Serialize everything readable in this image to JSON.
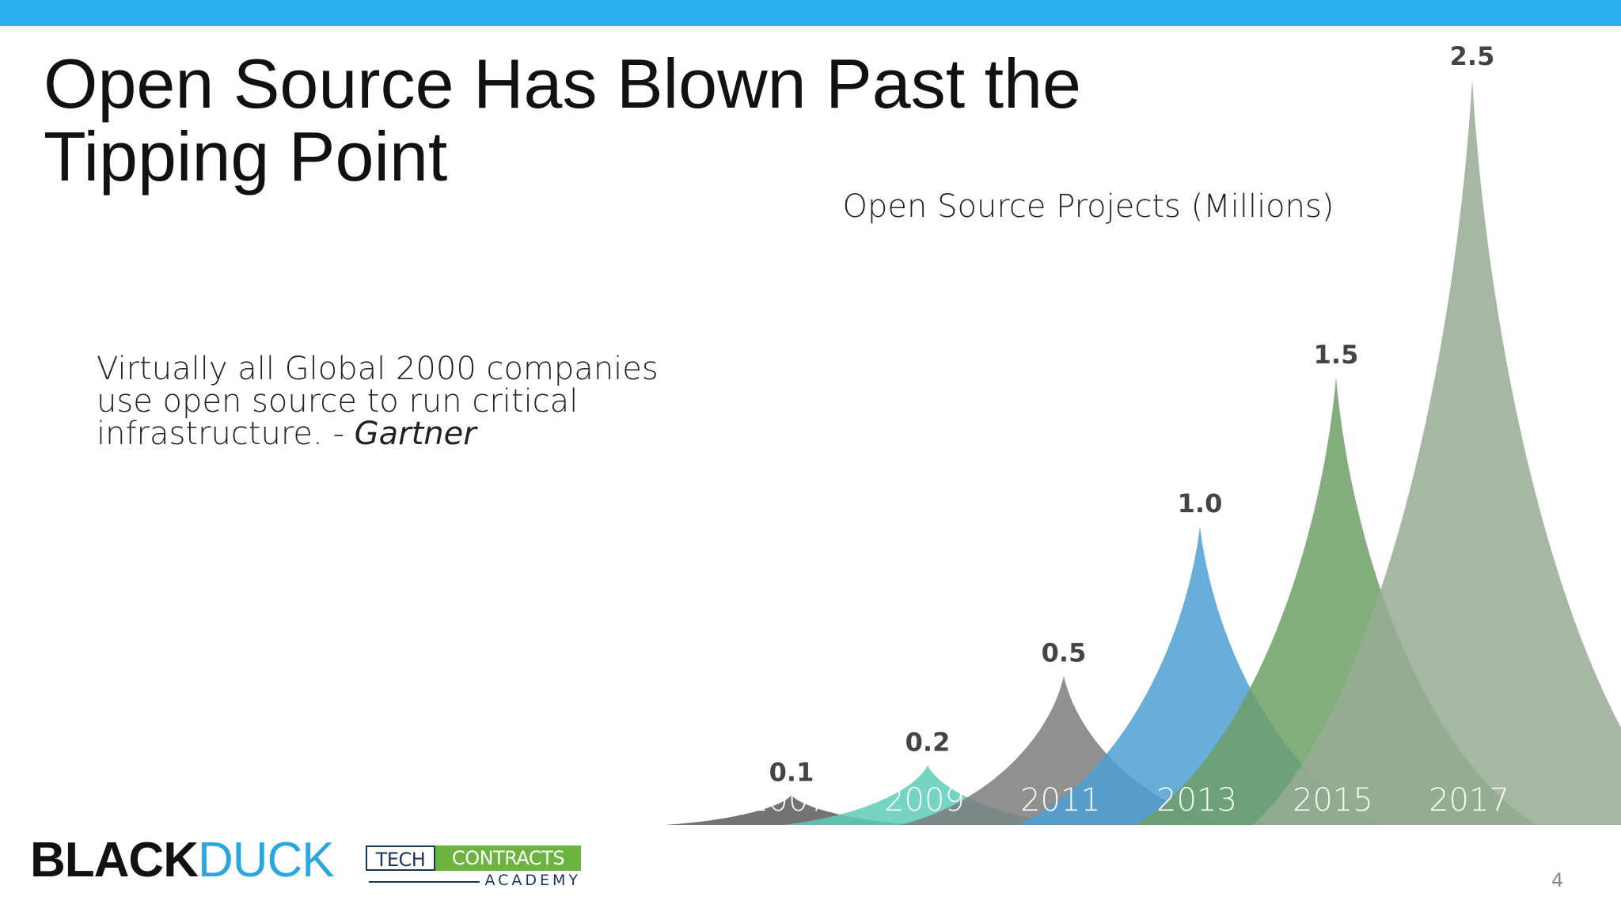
{
  "slide": {
    "title": "Open Source Has Blown Past the Tipping Point",
    "quote_text": "Virtually all Global 2000 companies use open source to run critical infrastructure. - ",
    "quote_source": "Gartner",
    "page_number": "4"
  },
  "colors": {
    "top_bar": "#2aaef0",
    "label_text": "#444444",
    "year_text": "#ffffff",
    "title_text": "#111111"
  },
  "logos": {
    "blackduck_part1": "BLACK",
    "blackduck_part2": "DUCK",
    "tca_part1": "TECH",
    "tca_part2": "CONTRACTS",
    "tca_part3": "ACADEMY"
  },
  "chart_data": {
    "type": "area",
    "title": "Open Source Projects (Millions)",
    "categories": [
      "2007",
      "2009",
      "2011",
      "2013",
      "2015",
      "2017"
    ],
    "values": [
      0.1,
      0.2,
      0.5,
      1.0,
      1.5,
      2.5
    ],
    "value_labels": [
      "0.1",
      "0.2",
      "0.5",
      "1.0",
      "1.5",
      "2.5"
    ],
    "series_colors": [
      "#5c5a5c",
      "#5ecdb9",
      "#7d7c7f",
      "#4ea0d3",
      "#6f9f66",
      "#96ab93"
    ],
    "ylim": [
      0,
      2.5
    ],
    "grid": false,
    "legend": "none"
  }
}
